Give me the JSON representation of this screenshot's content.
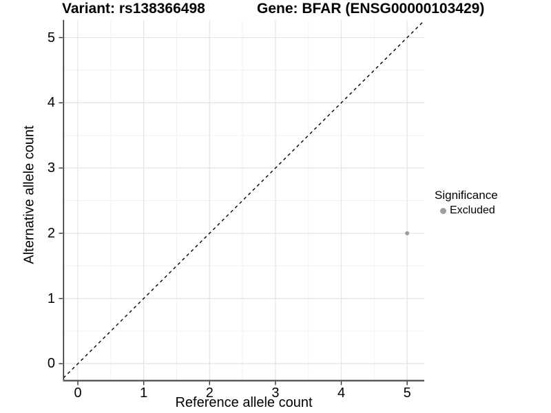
{
  "chart_data": {
    "type": "scatter",
    "titles": {
      "left": "Variant: rs138366498",
      "right": "Gene: BFAR (ENSG00000103429)"
    },
    "xlabel": "Reference allele count",
    "ylabel": "Alternative allele count",
    "xticks": [
      0,
      1,
      2,
      3,
      4,
      5
    ],
    "yticks": [
      0,
      1,
      2,
      3,
      4,
      5
    ],
    "xlim": [
      -0.22,
      5.26
    ],
    "ylim": [
      -0.26,
      5.27
    ],
    "grid": {
      "major": true,
      "minor": true
    },
    "points": [
      {
        "x": 5,
        "y": 2,
        "series": "Excluded",
        "color": "#9E9E9E",
        "r": 3
      }
    ],
    "reference_line": {
      "slope": 1,
      "intercept": 0,
      "style": "dashed",
      "color": "#000000"
    },
    "legend": {
      "title": "Significance",
      "position": "right",
      "items": [
        {
          "label": "Excluded",
          "color": "#9E9E9E"
        }
      ]
    },
    "style": {
      "grid_major_color": "#E3E3E3",
      "grid_minor_color": "#F0F0F0",
      "axis_line_y_color": "#2B2B2B",
      "axis_line_x_color": "#5A5A5A",
      "tick_color": "#333333",
      "background": "#FFFFFF"
    }
  }
}
